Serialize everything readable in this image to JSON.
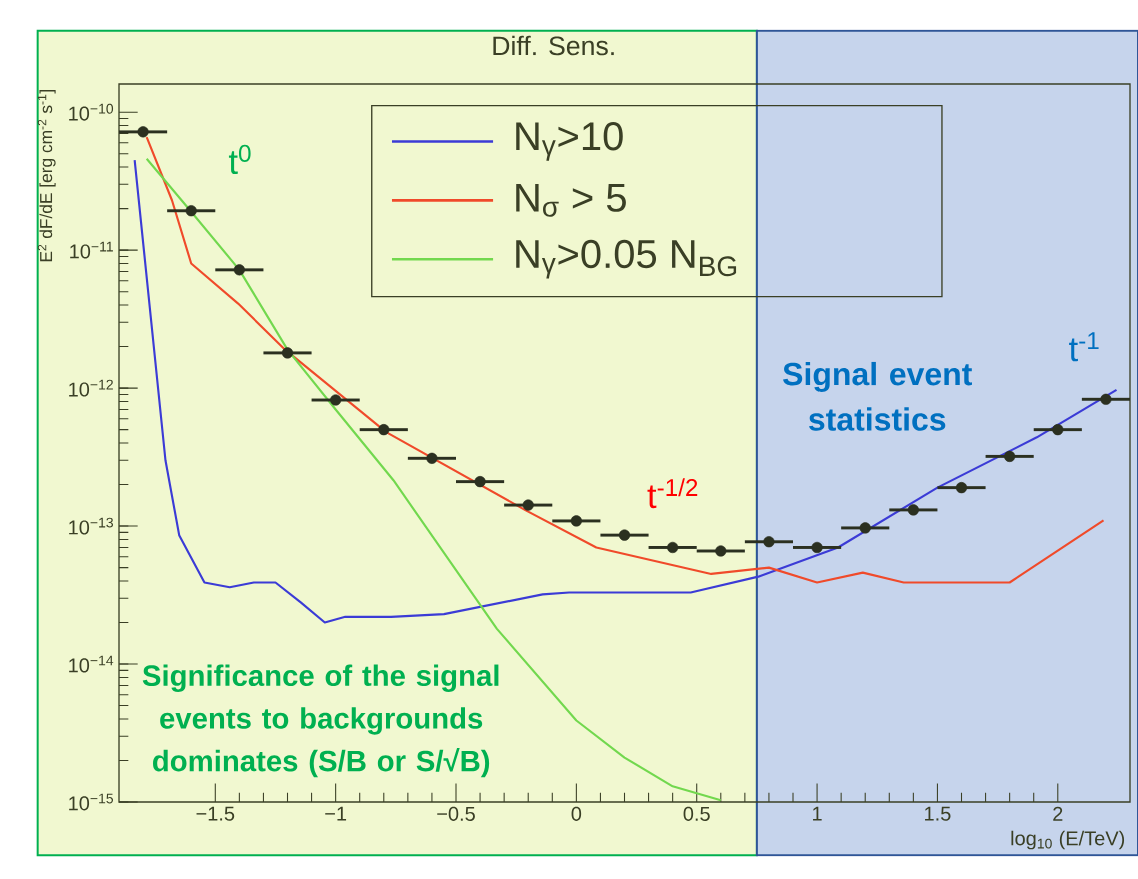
{
  "chart_data": {
    "type": "line",
    "title": "Diff. Sens.",
    "xlabel": "log$_{10}$ (E/TeV)",
    "ylabel": "E$^{2}$ dF/dE [erg cm$^{-2}$ s$^{-1}$]",
    "log": "y",
    "xlim": [
      -1.9,
      2.3
    ],
    "ylim": [
      1e-15,
      1.6e-10
    ],
    "xticks": [
      {
        "value": -1.5,
        "label": "−1.5"
      },
      {
        "value": -1,
        "label": "−1"
      },
      {
        "value": -0.5,
        "label": "−0.5"
      },
      0,
      0.5,
      1,
      1.5,
      2
    ],
    "yticks": [
      {
        "value": 1e-15,
        "label": "10$^{−15}$"
      },
      {
        "value": 1e-14,
        "label": "10$^{−14}$"
      },
      {
        "value": 1e-13,
        "label": "10$^{−13}$"
      },
      {
        "value": 1e-12,
        "label": "10$^{−12}$"
      },
      {
        "value": 1e-11,
        "label": "10$^{−11}$"
      },
      {
        "value": 1e-10,
        "label": "10$^{−10}$"
      }
    ],
    "legend": "top",
    "grid": false,
    "series": [
      {
        "name": "N$_{γ}$>10",
        "color": "#3b3bd6",
        "x": [
          -1.835,
          -1.707,
          -1.65,
          -1.545,
          -1.44,
          -1.34,
          -1.25,
          -1.145,
          -1.045,
          -0.96,
          -0.77,
          -0.55,
          -0.14,
          -0.03,
          0.475,
          0.756,
          1.087,
          1.5,
          1.913,
          2.244
        ],
        "values": [
          4.5e-11,
          3e-13,
          8.6e-14,
          3.9e-14,
          3.6e-14,
          3.9e-14,
          3.9e-14,
          2.8e-14,
          2e-14,
          2.2e-14,
          2.2e-14,
          2.3e-14,
          3.2e-14,
          3.3e-14,
          3.3e-14,
          4.3e-14,
          7e-14,
          1.9e-13,
          4.4e-13,
          9.7e-13
        ]
      },
      {
        "name": "N$_{σ}$ > 5",
        "color": "#f04a2a",
        "x": [
          -1.785,
          -1.68,
          -1.6,
          -1.405,
          -1.21,
          -0.79,
          -0.21,
          0.083,
          0.56,
          0.8,
          1.0,
          1.19,
          1.36,
          1.8,
          2.19
        ],
        "values": [
          6.6e-11,
          2.3e-11,
          8e-12,
          4.1e-12,
          1.9e-12,
          4.8e-13,
          1.3e-13,
          7e-14,
          4.5e-14,
          5e-14,
          3.9e-14,
          4.6e-14,
          3.9e-14,
          3.9e-14,
          1.1e-13
        ]
      },
      {
        "name": "N$_{γ}$>0.05 N$_{BG}$",
        "color": "#72d84e",
        "x": [
          -1.785,
          -1.6,
          -1.4,
          -1.2,
          -1.0,
          -0.76,
          -0.33,
          0,
          0.2,
          0.4,
          0.6
        ],
        "values": [
          4.6e-11,
          1.9e-11,
          7.2e-12,
          1.9e-12,
          7e-13,
          2.15e-13,
          1.8e-14,
          3.9e-15,
          2.1e-15,
          1.3e-15,
          1.03e-15
        ]
      },
      {
        "type": "scatter",
        "marker": "circle",
        "color": "#2b3020",
        "x": [
          -1.8,
          -1.6,
          -1.4,
          -1.2,
          -1.0,
          -0.8,
          -0.6,
          -0.4,
          -0.2,
          0,
          0.2,
          0.4,
          0.6,
          0.8,
          1.0,
          1.2,
          1.4,
          1.6,
          1.8,
          2.0,
          2.2
        ],
        "values": [
          7.2e-11,
          1.93e-11,
          7.2e-12,
          1.8e-12,
          8.2e-13,
          5e-13,
          3.1e-13,
          2.1e-13,
          1.42e-13,
          1.09e-13,
          8.6e-14,
          7e-14,
          6.6e-14,
          7.7e-14,
          7e-14,
          9.7e-14,
          1.31e-13,
          1.9e-13,
          3.2e-13,
          5e-13,
          8.3e-13
        ],
        "xerrors": [
          0.1,
          0.1,
          0.1,
          0.1,
          0.1,
          0.1,
          0.1,
          0.1,
          0.1,
          0.1,
          0.1,
          0.1,
          0.1,
          0.1,
          0.1,
          0.1,
          0.1,
          0.1,
          0.1,
          0.1,
          0.1
        ]
      }
    ],
    "bands": [
      {
        "axis": "x",
        "from": -1.9,
        "to": 0.75,
        "color": "#f1f8d0"
      },
      {
        "axis": "x",
        "from": 0.75,
        "to": 2.3,
        "color": "#c6d4ec"
      }
    ],
    "annotations": [
      "t$^{0}$",
      "t$^{-1/2}$",
      "t$^{-1}$",
      "Significance of the signal events to backgrounds dominates (S/B or S/√B)",
      "Signal event statistics"
    ]
  }
}
